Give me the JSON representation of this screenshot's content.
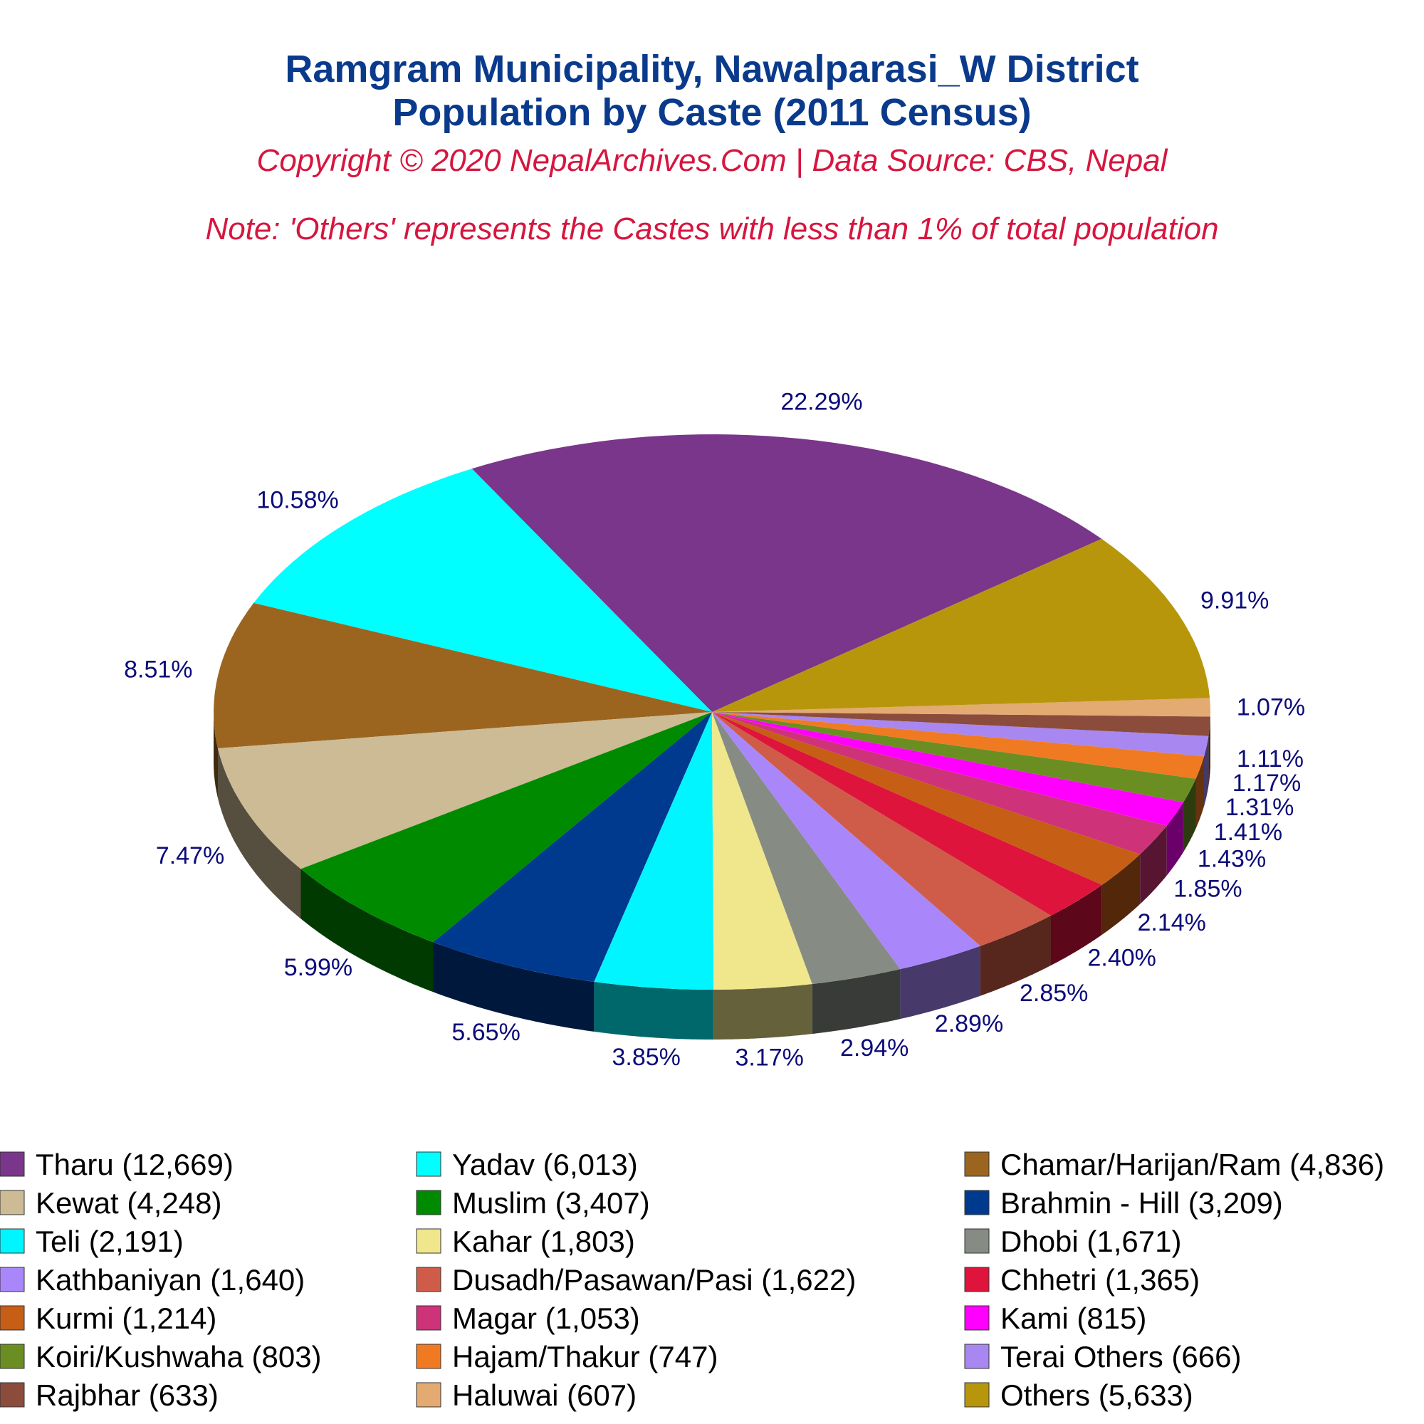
{
  "header": {
    "title_line1": "Ramgram Municipality, Nawalparasi_W District",
    "title_line2": "Population by Caste (2011 Census)",
    "copyright": "Copyright © 2020 NepalArchives.Com | Data Source: CBS, Nepal",
    "note": "Note: 'Others' represents the Castes with less than 1% of total population"
  },
  "chart_data": {
    "type": "pie",
    "style": "3d-exploded-oval",
    "legend_placement": "bottom",
    "slices": [
      {
        "name": "Tharu",
        "value": 12669,
        "percent": "22.29%",
        "legend": "Tharu (12,669)",
        "color": "#7a368a"
      },
      {
        "name": "Yadav",
        "value": 6013,
        "percent": "10.58%",
        "legend": "Yadav (6,013)",
        "color": "#00ffff"
      },
      {
        "name": "Chamar/Harijan/Ram",
        "value": 4836,
        "percent": "8.51%",
        "legend": "Chamar/Harijan/Ram (4,836)",
        "color": "#9b6520"
      },
      {
        "name": "Kewat",
        "value": 4248,
        "percent": "7.47%",
        "legend": "Kewat (4,248)",
        "color": "#ccbb95"
      },
      {
        "name": "Muslim",
        "value": 3407,
        "percent": "5.99%",
        "legend": "Muslim (3,407)",
        "color": "#008a00"
      },
      {
        "name": "Brahmin - Hill",
        "value": 3209,
        "percent": "5.65%",
        "legend": "Brahmin - Hill (3,209)",
        "color": "#003a8f"
      },
      {
        "name": "Teli",
        "value": 2191,
        "percent": "3.85%",
        "legend": "Teli (2,191)",
        "color": "#00f5ff"
      },
      {
        "name": "Kahar",
        "value": 1803,
        "percent": "3.17%",
        "legend": "Kahar (1,803)",
        "color": "#f0e68c"
      },
      {
        "name": "Dhobi",
        "value": 1671,
        "percent": "2.94%",
        "legend": "Dhobi (1,671)",
        "color": "#868c84"
      },
      {
        "name": "Kathbaniyan",
        "value": 1640,
        "percent": "2.89%",
        "legend": "Kathbaniyan (1,640)",
        "color": "#a987fa"
      },
      {
        "name": "Dusadh/Pasawan/Pasi",
        "value": 1622,
        "percent": "2.85%",
        "legend": "Dusadh/Pasawan/Pasi (1,622)",
        "color": "#cf5c48"
      },
      {
        "name": "Chhetri",
        "value": 1365,
        "percent": "2.40%",
        "legend": "Chhetri (1,365)",
        "color": "#de143d"
      },
      {
        "name": "Kurmi",
        "value": 1214,
        "percent": "2.14%",
        "legend": "Kurmi (1,214)",
        "color": "#c65e15"
      },
      {
        "name": "Magar",
        "value": 1053,
        "percent": "1.85%",
        "legend": "Magar (1,053)",
        "color": "#ce3278"
      },
      {
        "name": "Kami",
        "value": 815,
        "percent": "1.43%",
        "legend": "Kami (815)",
        "color": "#ff00ff"
      },
      {
        "name": "Koiri/Kushwaha",
        "value": 803,
        "percent": "1.41%",
        "legend": "Koiri/Kushwaha (803)",
        "color": "#6b8e23"
      },
      {
        "name": "Hajam/Thakur",
        "value": 747,
        "percent": "1.31%",
        "legend": "Hajam/Thakur (747)",
        "color": "#f07a22"
      },
      {
        "name": "Terai Others",
        "value": 666,
        "percent": "1.17%",
        "legend": "Terai Others (666)",
        "color": "#a887f0"
      },
      {
        "name": "Rajbhar",
        "value": 633,
        "percent": "1.11%",
        "legend": "Rajbhar (633)",
        "color": "#8b4c3c"
      },
      {
        "name": "Haluwai",
        "value": 607,
        "percent": "1.07%",
        "legend": "Haluwai (607)",
        "color": "#e3aa72"
      },
      {
        "name": "Others",
        "value": 5633,
        "percent": "9.91%",
        "legend": "Others (5,633)",
        "color": "#b8960c"
      }
    ]
  }
}
